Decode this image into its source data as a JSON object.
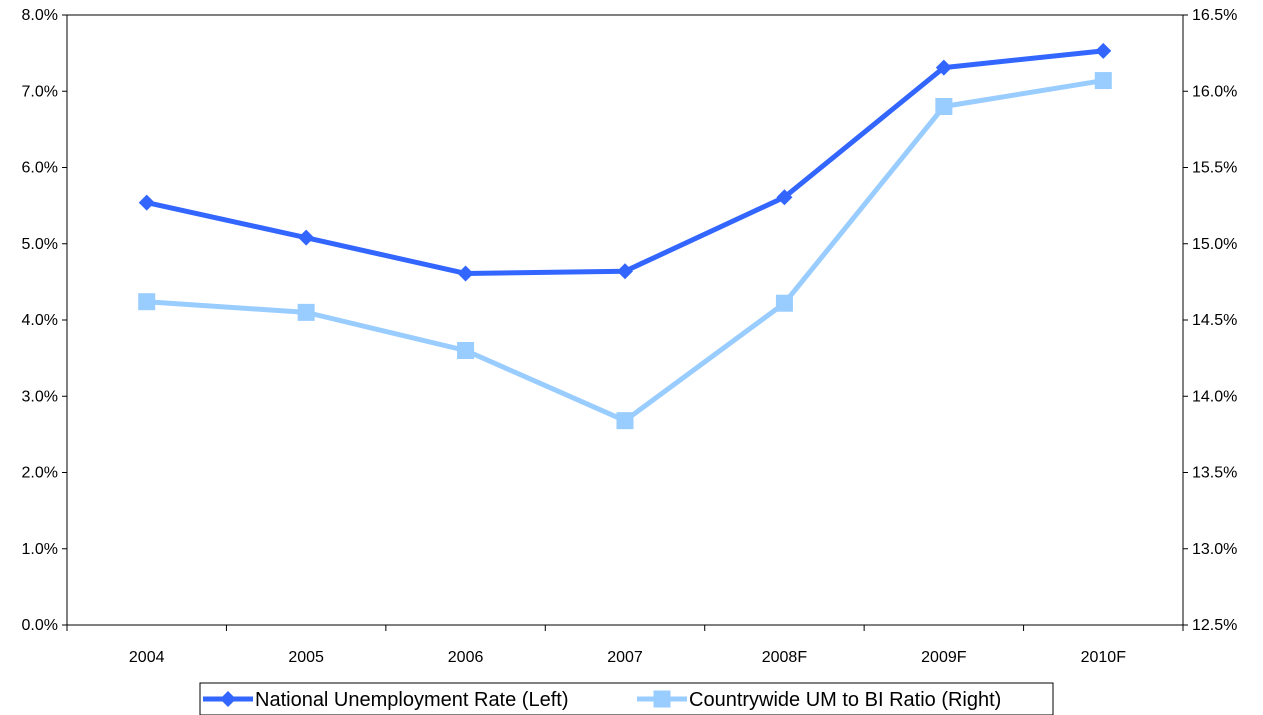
{
  "chart_data": {
    "type": "line",
    "categories": [
      "2004",
      "2005",
      "2006",
      "2007",
      "2008F",
      "2009F",
      "2010F"
    ],
    "y_left": {
      "range": [
        0,
        8
      ],
      "ticks": [
        "0.0%",
        "1.0%",
        "2.0%",
        "3.0%",
        "4.0%",
        "5.0%",
        "6.0%",
        "7.0%",
        "8.0%"
      ]
    },
    "y_right": {
      "range": [
        12.5,
        16.5
      ],
      "ticks": [
        "12.5%",
        "13.0%",
        "13.5%",
        "14.0%",
        "14.5%",
        "15.0%",
        "15.5%",
        "16.0%",
        "16.5%"
      ]
    },
    "series": [
      {
        "name": "National Unemployment Rate (Left)",
        "axis": "left",
        "marker": "diamond",
        "color": "#3366FF",
        "values": [
          5.54,
          5.08,
          4.61,
          4.64,
          5.61,
          7.31,
          7.53
        ]
      },
      {
        "name": "Countrywide UM to BI Ratio (Right)",
        "axis": "right",
        "marker": "square",
        "color": "#99CCFF",
        "values": [
          14.62,
          14.55,
          14.3,
          13.84,
          14.61,
          15.9,
          16.07
        ]
      }
    ],
    "grid": false,
    "legend": "bottom-center"
  }
}
